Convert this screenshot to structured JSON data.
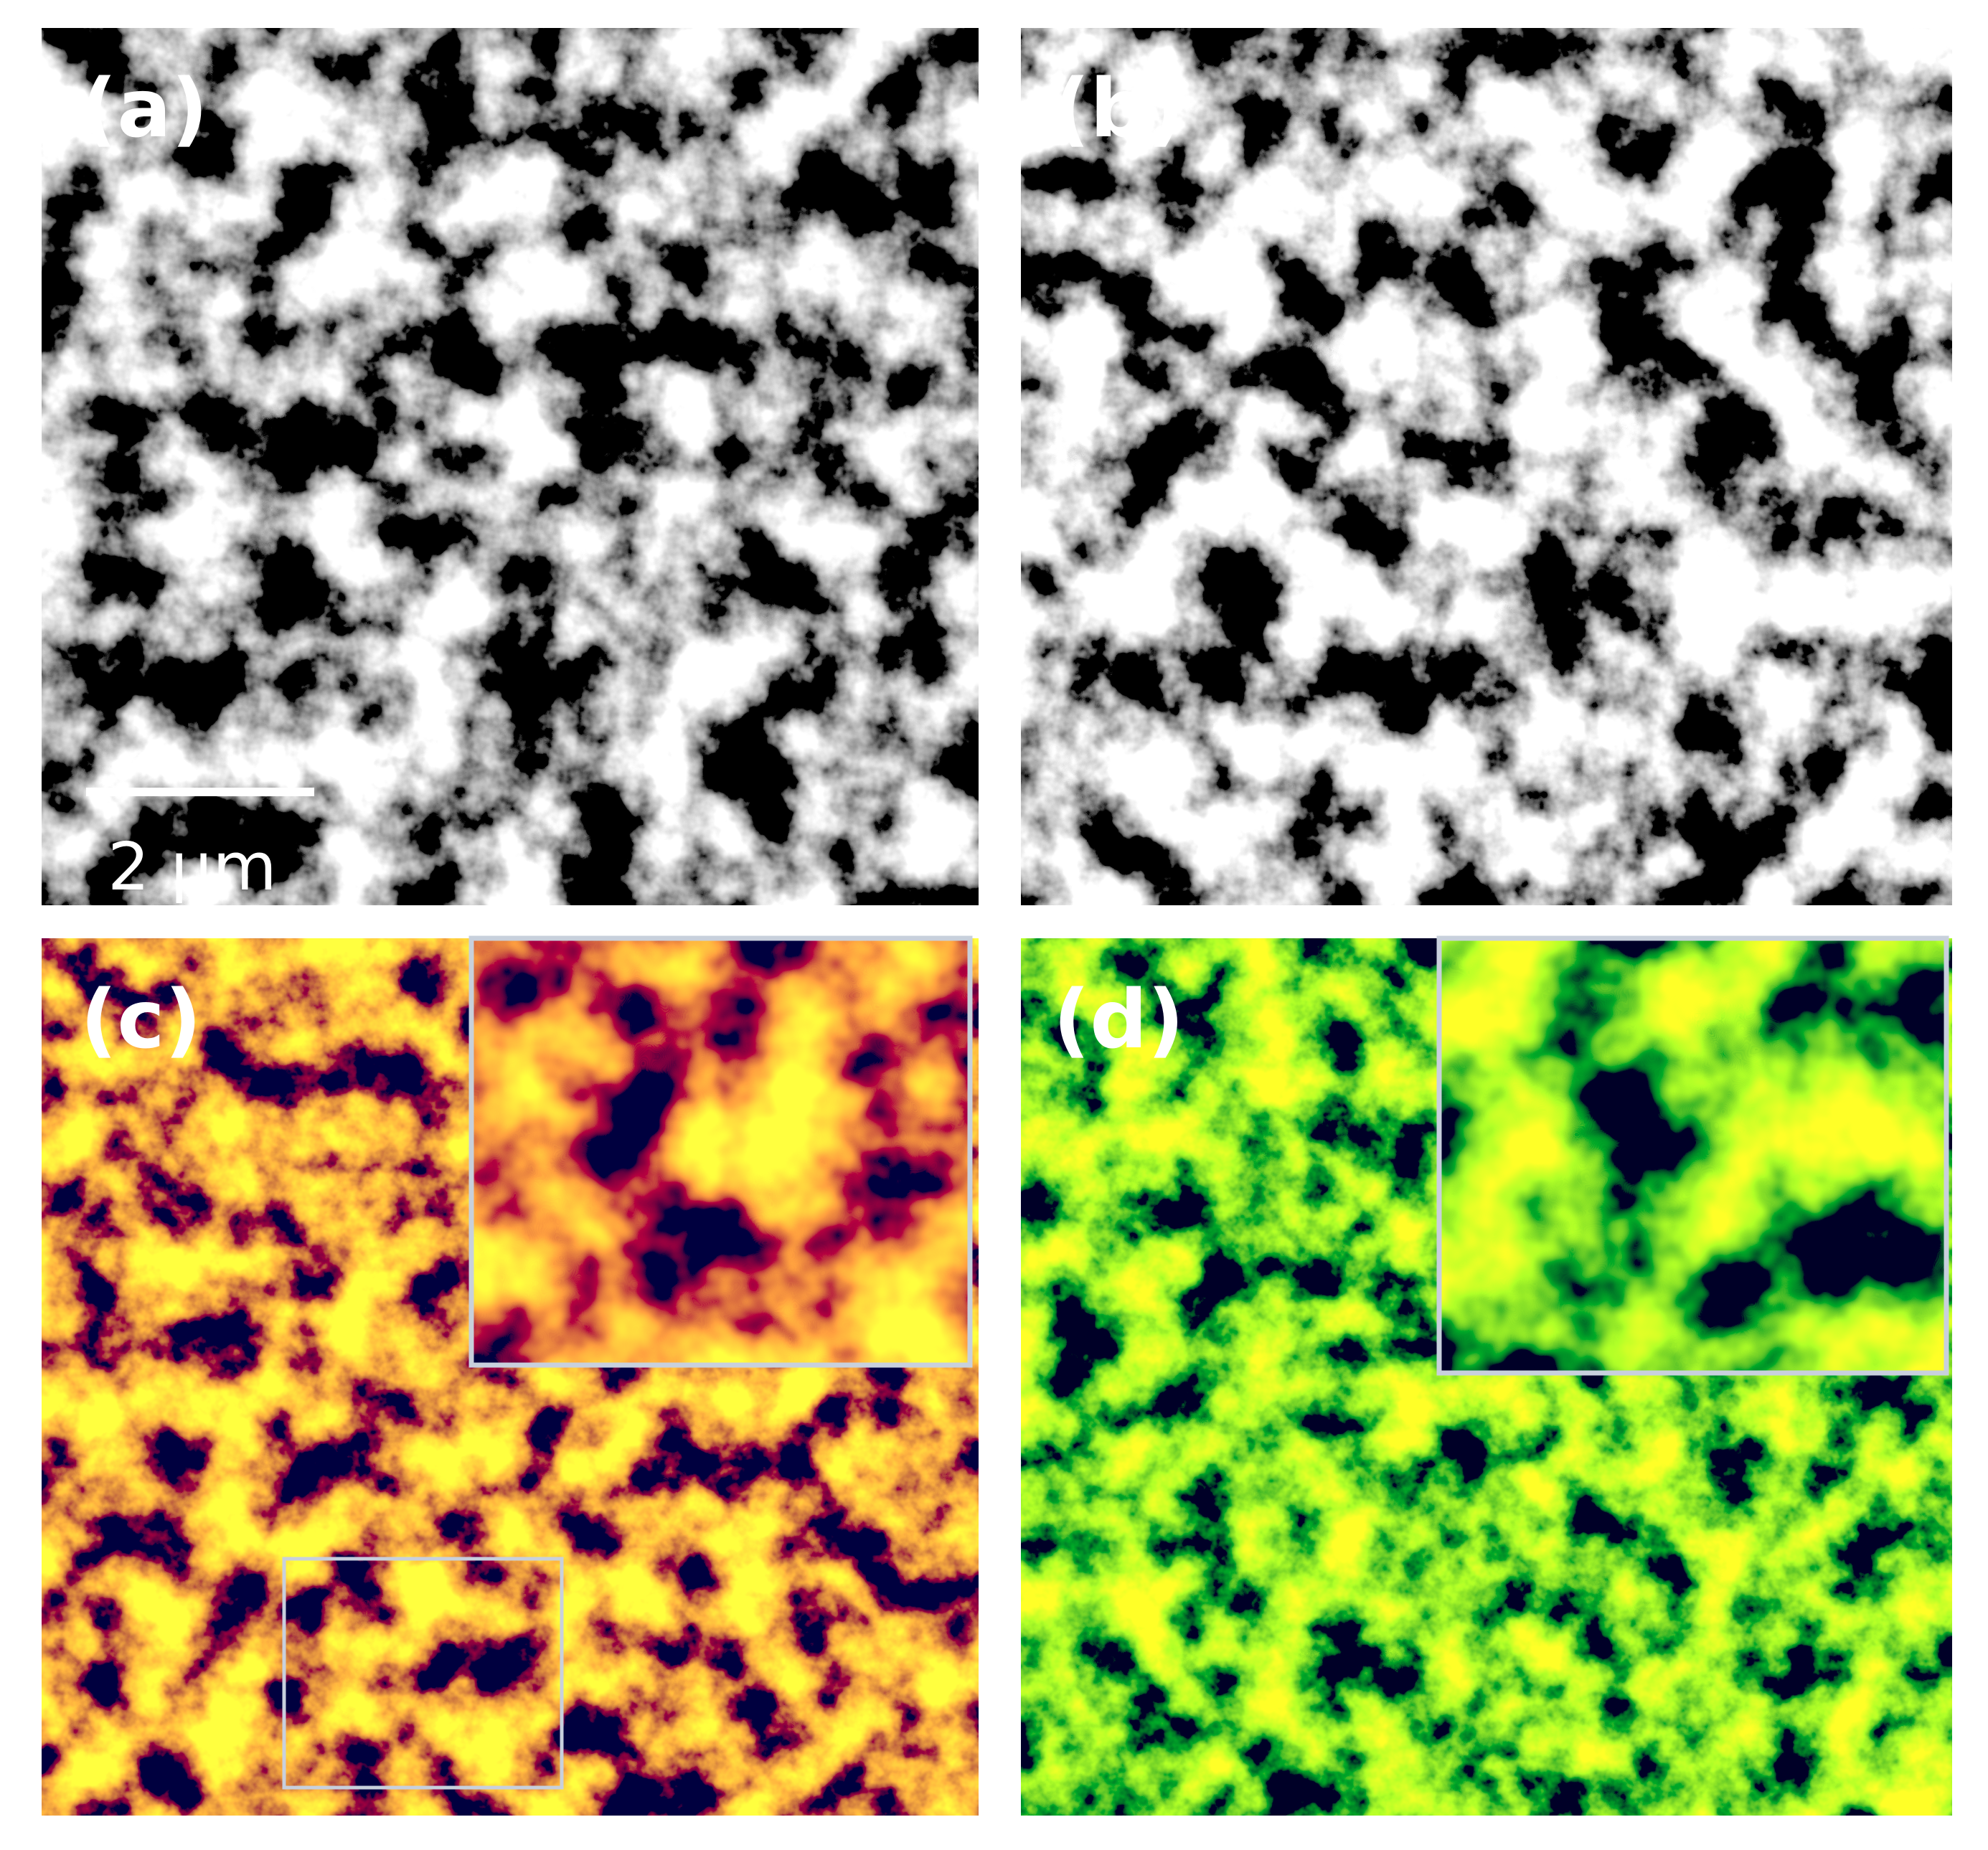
{
  "panels": [
    {
      "label": "(a)"
    },
    {
      "label": "(b)"
    },
    {
      "label": "(c)"
    },
    {
      "label": "(d)"
    }
  ],
  "scale_bar": {
    "label": "2 µm"
  }
}
